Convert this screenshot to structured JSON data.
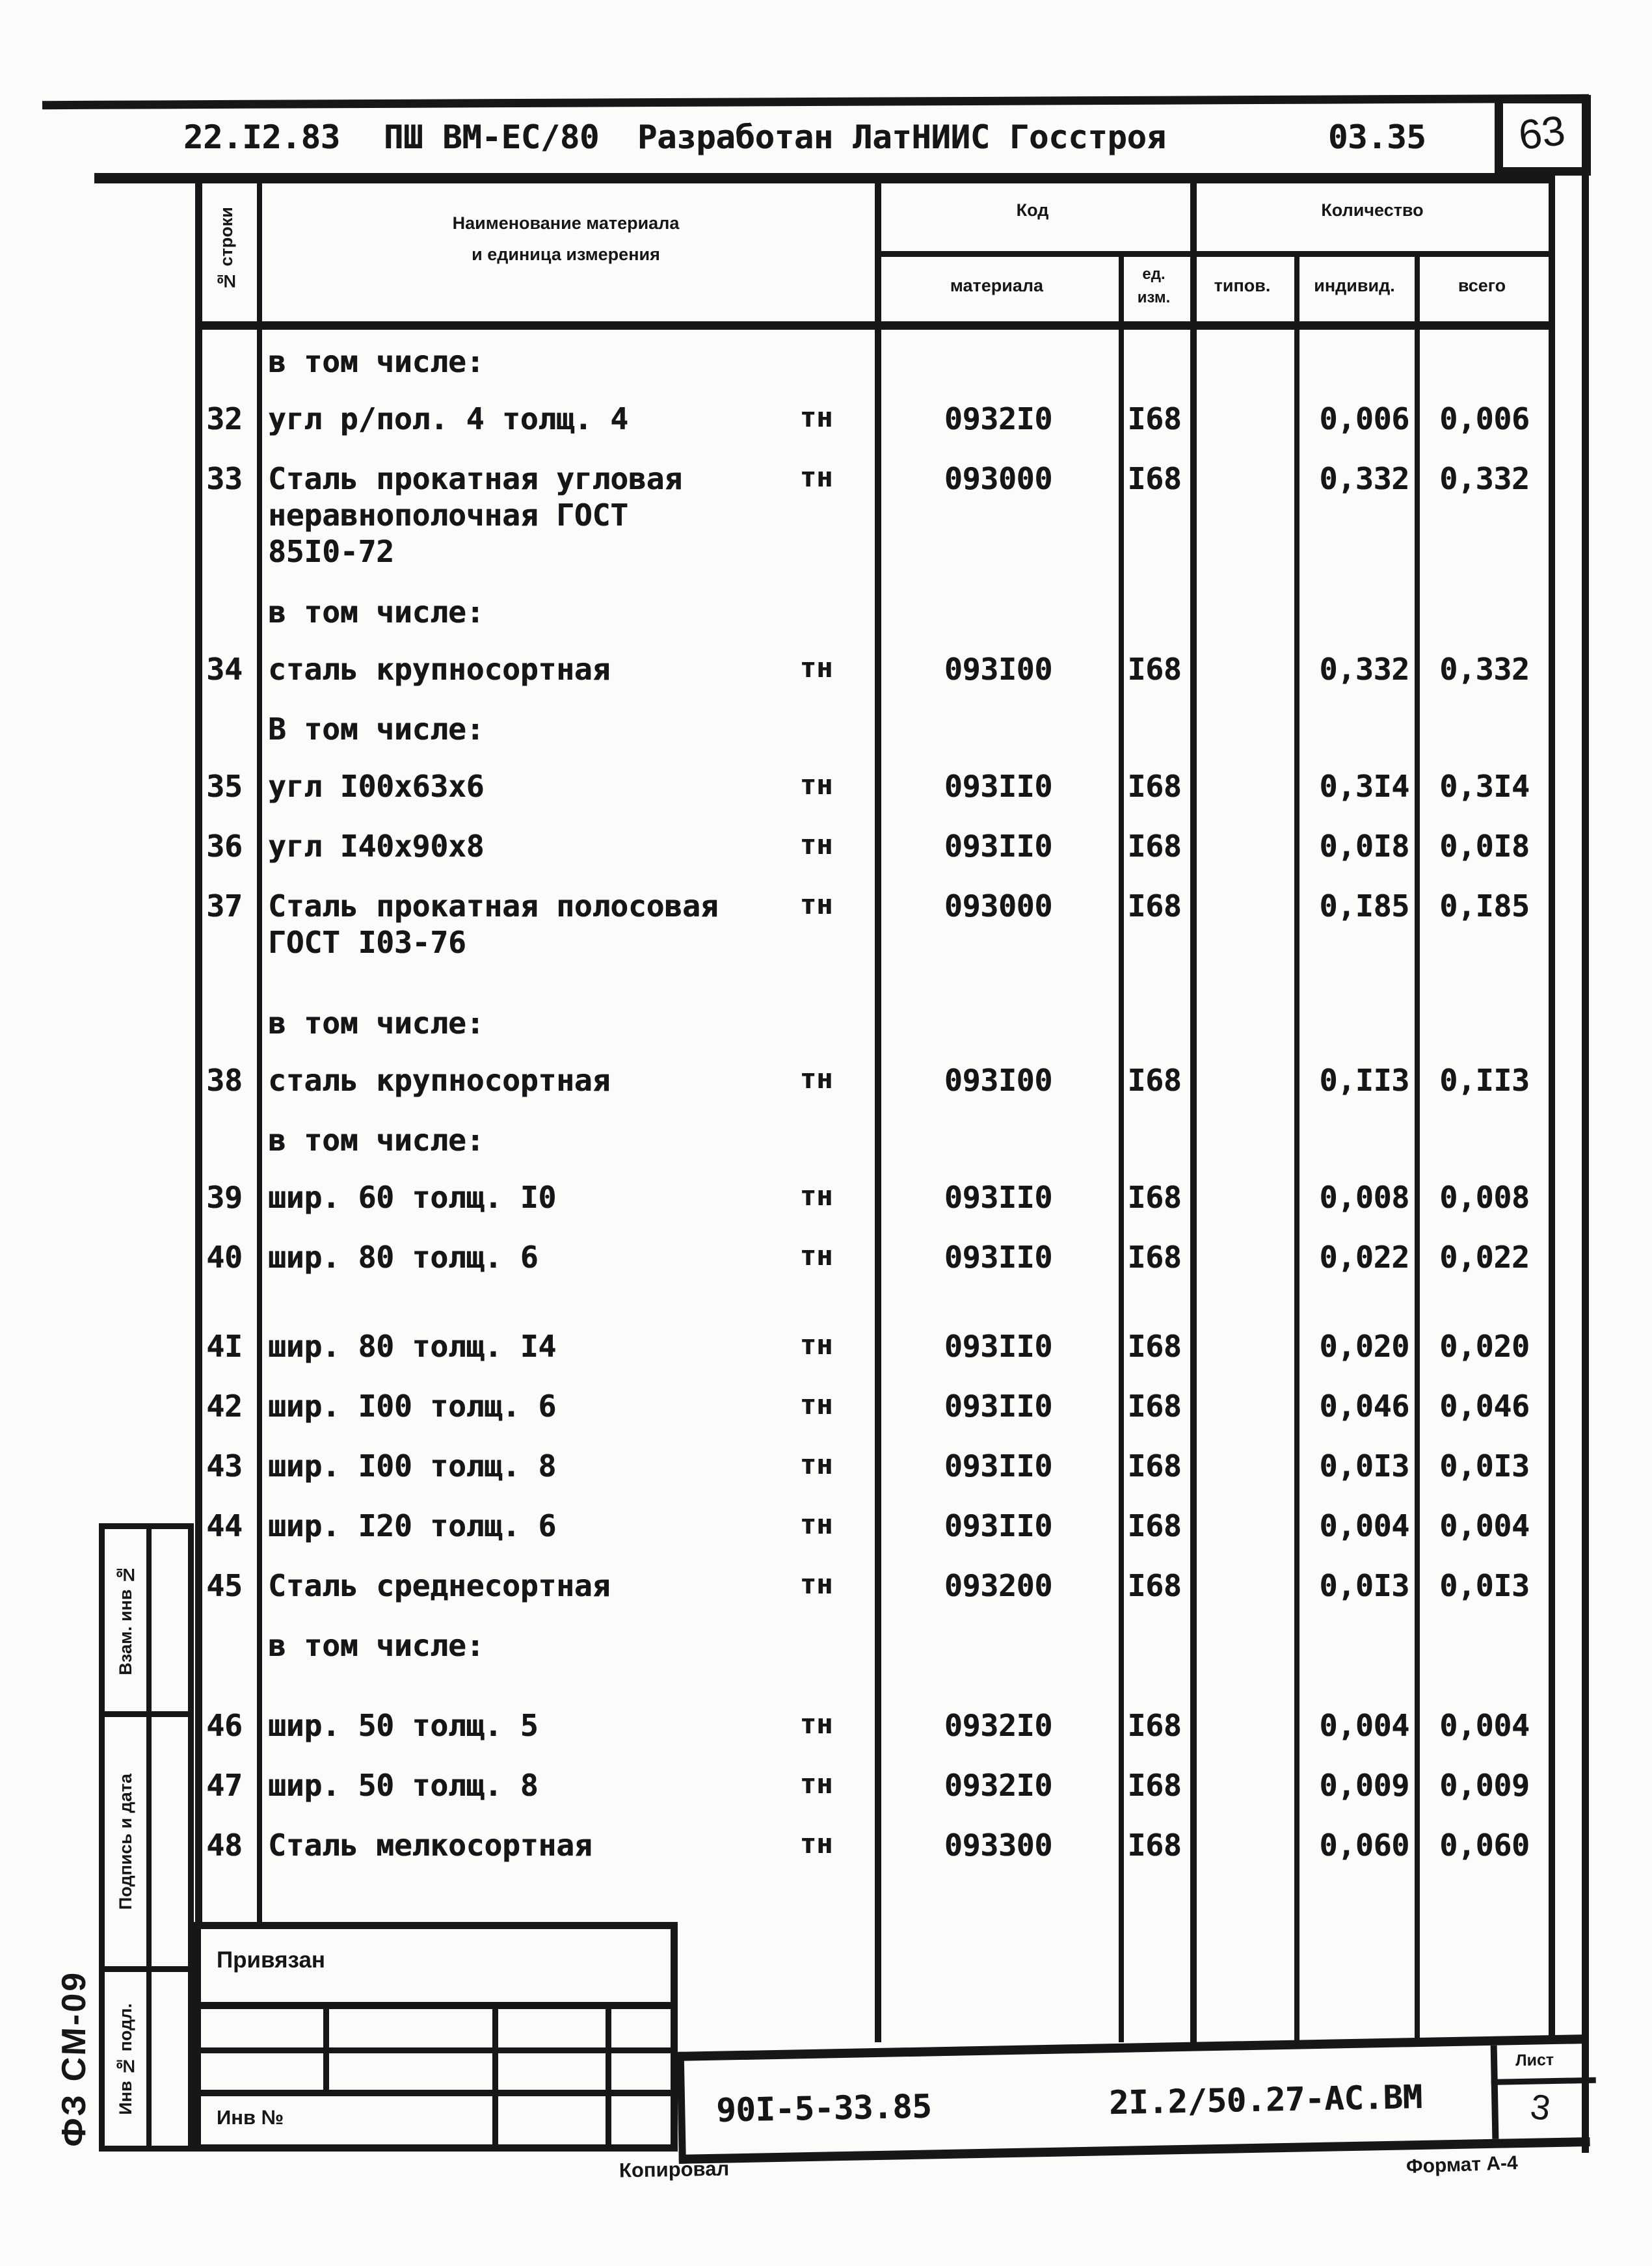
{
  "header": {
    "date": "22.I2.83",
    "project": "ПШ ВМ-ЕС/80",
    "developed_by": "Разработан ЛатНИИС Госстроя",
    "doc_code": "03.35",
    "sheet_number": "63"
  },
  "table": {
    "headers": {
      "row_no": "№ строки",
      "name_line1": "Наименование материала",
      "name_line2": "и единица измерения",
      "code_group": "Код",
      "code_material": "материала",
      "unit_line1": "ед.",
      "unit_line2": "изм.",
      "qty_group": "Количество",
      "qty_typical": "типов.",
      "qty_individual": "индивид.",
      "qty_total": "всего"
    },
    "rows": [
      {
        "group": "в том числе:"
      },
      {
        "no": "32",
        "lines": [
          "угл р/пол. 4 толщ. 4"
        ],
        "unit": "тн",
        "code": "0932I0",
        "unit_code": "I68",
        "typical": "",
        "individual": "0,006",
        "total": "0,006"
      },
      {
        "no": "33",
        "lines": [
          "Сталь прокатная угловая",
          "неравнополочная ГОСТ",
          "85I0-72"
        ],
        "unit": "тн",
        "code": "093000",
        "unit_code": "I68",
        "typical": "",
        "individual": "0,332",
        "total": "0,332"
      },
      {
        "group": "в том числе:"
      },
      {
        "no": "34",
        "lines": [
          "сталь крупносортная"
        ],
        "unit": "тн",
        "code": "093I00",
        "unit_code": "I68",
        "typical": "",
        "individual": "0,332",
        "total": "0,332"
      },
      {
        "group": "В том числе:"
      },
      {
        "no": "35",
        "lines": [
          "угл I00х63х6"
        ],
        "unit": "тн",
        "code": "093II0",
        "unit_code": "I68",
        "typical": "",
        "individual": "0,3I4",
        "total": "0,3I4"
      },
      {
        "no": "36",
        "lines": [
          "угл I40х90х8"
        ],
        "unit": "тн",
        "code": "093II0",
        "unit_code": "I68",
        "typical": "",
        "individual": "0,0I8",
        "total": "0,0I8"
      },
      {
        "no": "37",
        "lines": [
          "Сталь прокатная полосовая",
          "ГОСТ I03-76"
        ],
        "unit": "тн",
        "code": "093000",
        "unit_code": "I68",
        "typical": "",
        "individual": "0,I85",
        "total": "0,I85"
      },
      {
        "group": "в том числе:"
      },
      {
        "no": "38",
        "lines": [
          "сталь крупносортная"
        ],
        "unit": "тн",
        "code": "093I00",
        "unit_code": "I68",
        "typical": "",
        "individual": "0,II3",
        "total": "0,II3"
      },
      {
        "group": "в том числе:"
      },
      {
        "no": "39",
        "lines": [
          "шир. 60 толщ. I0"
        ],
        "unit": "тн",
        "code": "093II0",
        "unit_code": "I68",
        "typical": "",
        "individual": "0,008",
        "total": "0,008"
      },
      {
        "no": "40",
        "lines": [
          "шир. 80 толщ. 6"
        ],
        "unit": "тн",
        "code": "093II0",
        "unit_code": "I68",
        "typical": "",
        "individual": "0,022",
        "total": "0,022"
      },
      {
        "no": "4I",
        "lines": [
          "шир. 80 толщ. I4"
        ],
        "unit": "тн",
        "code": "093II0",
        "unit_code": "I68",
        "typical": "",
        "individual": "0,020",
        "total": "0,020"
      },
      {
        "no": "42",
        "lines": [
          "шир. I00 толщ. 6"
        ],
        "unit": "тн",
        "code": "093II0",
        "unit_code": "I68",
        "typical": "",
        "individual": "0,046",
        "total": "0,046"
      },
      {
        "no": "43",
        "lines": [
          "шир. I00 толщ. 8"
        ],
        "unit": "тн",
        "code": "093II0",
        "unit_code": "I68",
        "typical": "",
        "individual": "0,0I3",
        "total": "0,0I3"
      },
      {
        "no": "44",
        "lines": [
          "шир. I20 толщ. 6"
        ],
        "unit": "тн",
        "code": "093II0",
        "unit_code": "I68",
        "typical": "",
        "individual": "0,004",
        "total": "0,004"
      },
      {
        "no": "45",
        "lines": [
          "Сталь среднесортная"
        ],
        "unit": "тн",
        "code": "093200",
        "unit_code": "I68",
        "typical": "",
        "individual": "0,0I3",
        "total": "0,0I3"
      },
      {
        "group": "в том числе:"
      },
      {
        "no": "46",
        "lines": [
          "шир. 50 толщ. 5"
        ],
        "unit": "тн",
        "code": "0932I0",
        "unit_code": "I68",
        "typical": "",
        "individual": "0,004",
        "total": "0,004"
      },
      {
        "no": "47",
        "lines": [
          "шир. 50 толщ. 8"
        ],
        "unit": "тн",
        "code": "0932I0",
        "unit_code": "I68",
        "typical": "",
        "individual": "0,009",
        "total": "0,009"
      },
      {
        "no": "48",
        "lines": [
          "Сталь мелкосортная"
        ],
        "unit": "тн",
        "code": "093300",
        "unit_code": "I68",
        "typical": "",
        "individual": "0,060",
        "total": "0,060"
      }
    ]
  },
  "side_column": {
    "form_code": "ФЗ СМ-09",
    "cell_1": "Взам. инв №",
    "cell_2": "Подпись и дата",
    "cell_3": "Инв № подл."
  },
  "footer_stamp": {
    "top_label": "Привязан",
    "bottom_label": "Инв №"
  },
  "doc_box": {
    "series": "90I-5-33.85",
    "designation": "2I.2/50.27-АС.ВМ",
    "sheet_label": "Лист",
    "sheet_value": "3"
  },
  "footer_notes": {
    "copied_by": "Копировал",
    "format": "Формат А-4"
  }
}
